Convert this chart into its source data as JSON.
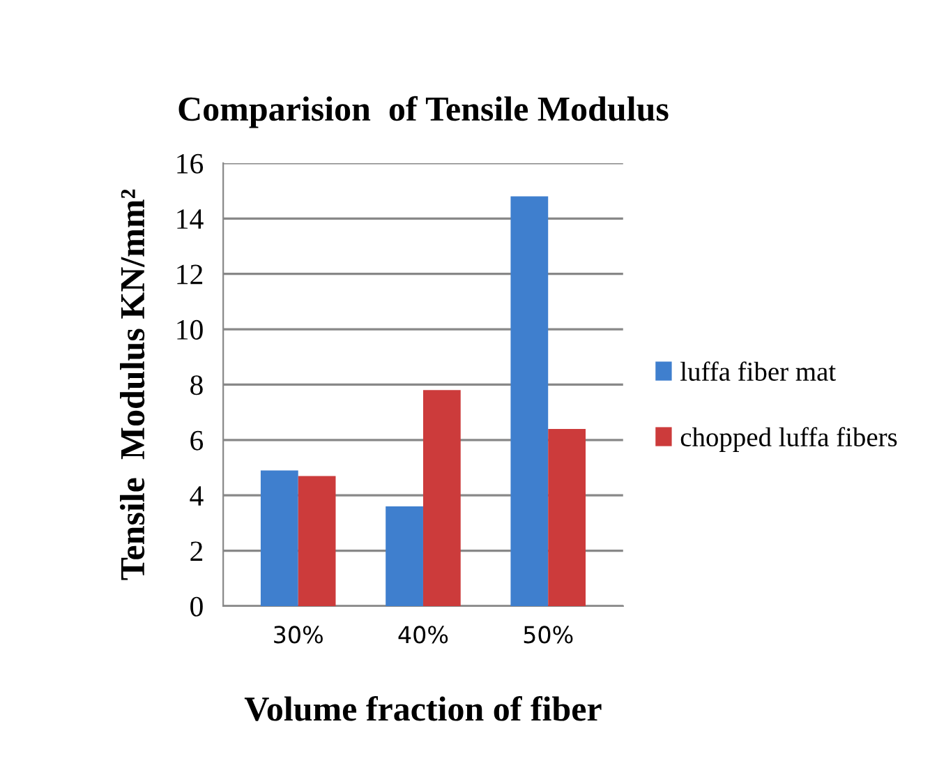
{
  "chart_data": {
    "type": "bar",
    "title": "Comparision  of Tensile Modulus",
    "xlabel": "Volume fraction of fiber",
    "ylabel": "Tensile  Modulus KN/mm²",
    "categories": [
      "30%",
      "40%",
      "50%"
    ],
    "series": [
      {
        "name": "luffa fiber mat",
        "color": "#3f7fce",
        "values": [
          4.9,
          3.6,
          14.8
        ]
      },
      {
        "name": "chopped luffa fibers",
        "color": "#cc3b3b",
        "values": [
          4.7,
          7.8,
          6.4
        ]
      }
    ],
    "ylim": [
      0,
      16
    ],
    "yticks": [
      0,
      2,
      4,
      6,
      8,
      10,
      12,
      14,
      16
    ],
    "grid": "y",
    "legend": "right"
  }
}
